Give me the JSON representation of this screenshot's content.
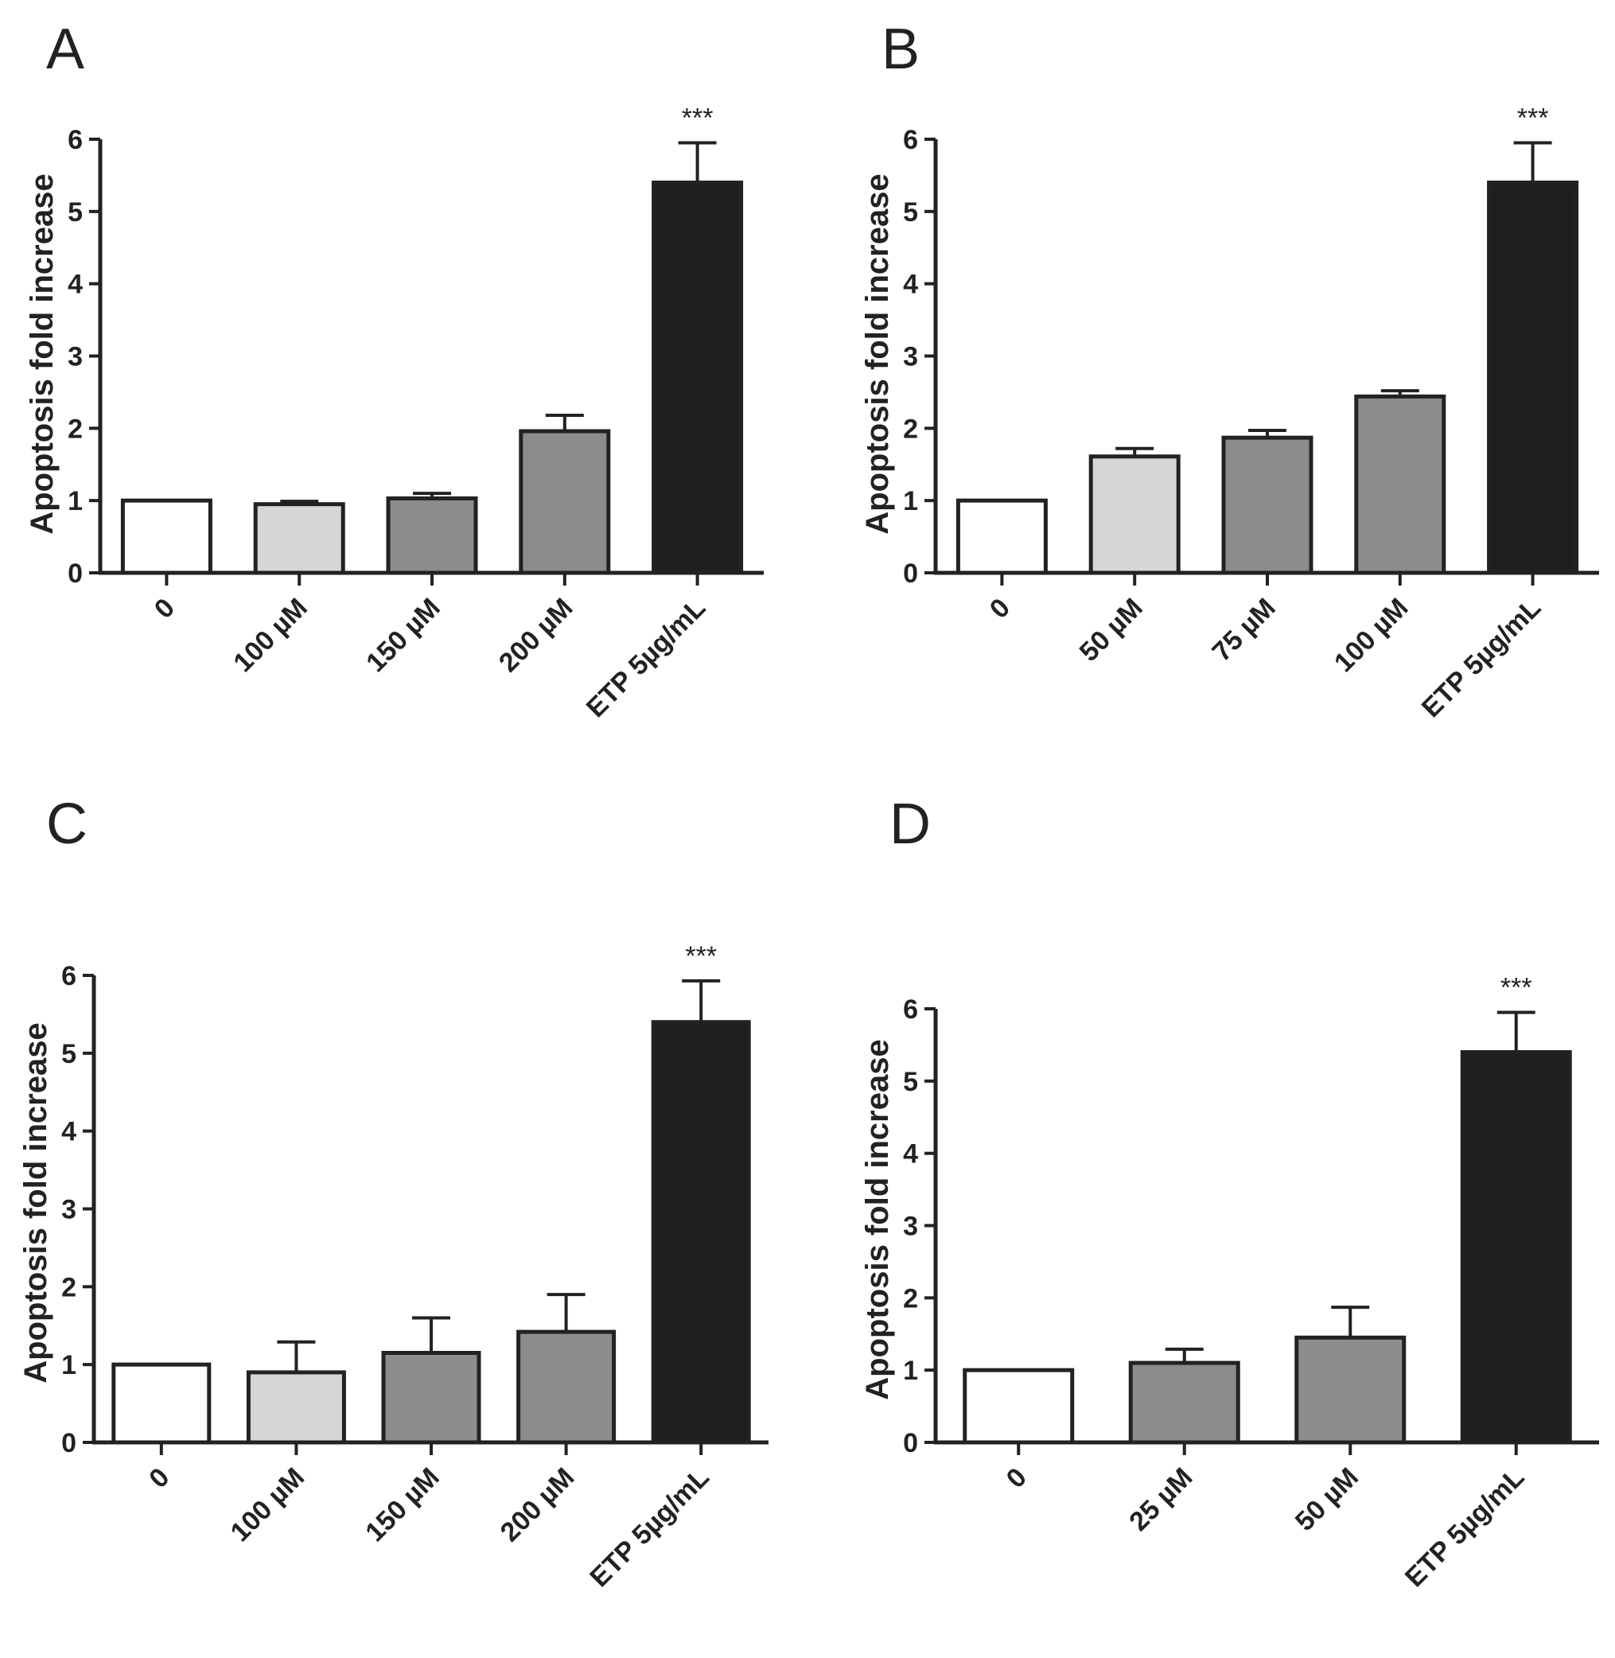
{
  "chart_data": [
    {
      "type": "bar",
      "panel": "A",
      "ylabel": "Apoptosis fold increase",
      "xlabel": "",
      "ylim": [
        0,
        6
      ],
      "yticks": [
        "0",
        "1",
        "2",
        "3",
        "4",
        "5",
        "6"
      ],
      "categories": [
        "0",
        "100 µM",
        "150 µM",
        "200 µM",
        "ETP 5µg/mL"
      ],
      "values": [
        1.0,
        0.95,
        1.03,
        1.96,
        5.4
      ],
      "errors": [
        0.0,
        0.04,
        0.07,
        0.22,
        0.55
      ],
      "colors": [
        "#ffffff",
        "#d6d6d6",
        "#8c8c8c",
        "#8c8c8c",
        "#1f1f1f"
      ],
      "annotations": [
        "",
        "",
        "",
        "",
        "***"
      ]
    },
    {
      "type": "bar",
      "panel": "B",
      "ylabel": "Apoptosis fold increase",
      "xlabel": "",
      "ylim": [
        0,
        6
      ],
      "yticks": [
        "0",
        "1",
        "2",
        "3",
        "4",
        "5",
        "6"
      ],
      "categories": [
        "0",
        "50 µM",
        "75 µM",
        "100 µM",
        "ETP 5µg/mL"
      ],
      "values": [
        1.0,
        1.61,
        1.87,
        2.44,
        5.4
      ],
      "errors": [
        0.0,
        0.11,
        0.1,
        0.08,
        0.55
      ],
      "colors": [
        "#ffffff",
        "#d6d6d6",
        "#8c8c8c",
        "#8c8c8c",
        "#1f1f1f"
      ],
      "annotations": [
        "",
        "",
        "",
        "",
        "***"
      ]
    },
    {
      "type": "bar",
      "panel": "C",
      "ylabel": "Apoptosis fold increase",
      "xlabel": "",
      "ylim": [
        0,
        6
      ],
      "yticks": [
        "0",
        "1",
        "2",
        "3",
        "4",
        "5",
        "6"
      ],
      "categories": [
        "0",
        "100 µM",
        "150 µM",
        "200 µM",
        "ETP 5µg/mL"
      ],
      "values": [
        1.0,
        0.9,
        1.15,
        1.42,
        5.4
      ],
      "errors": [
        0.0,
        0.39,
        0.45,
        0.48,
        0.53
      ],
      "colors": [
        "#ffffff",
        "#d6d6d6",
        "#8c8c8c",
        "#8c8c8c",
        "#1f1f1f"
      ],
      "annotations": [
        "",
        "",
        "",
        "",
        "***"
      ]
    },
    {
      "type": "bar",
      "panel": "D",
      "ylabel": "Apoptosis fold increase",
      "xlabel": "",
      "ylim": [
        0,
        6
      ],
      "yticks": [
        "0",
        "1",
        "2",
        "3",
        "4",
        "5",
        "6"
      ],
      "categories": [
        "0",
        "25 µM",
        "50 µM",
        "ETP 5µg/mL"
      ],
      "values": [
        1.0,
        1.1,
        1.45,
        5.4
      ],
      "errors": [
        0.0,
        0.19,
        0.42,
        0.55
      ],
      "colors": [
        "#ffffff",
        "#8c8c8c",
        "#8c8c8c",
        "#1f1f1f"
      ],
      "annotations": [
        "",
        "",
        "",
        "***"
      ]
    }
  ]
}
